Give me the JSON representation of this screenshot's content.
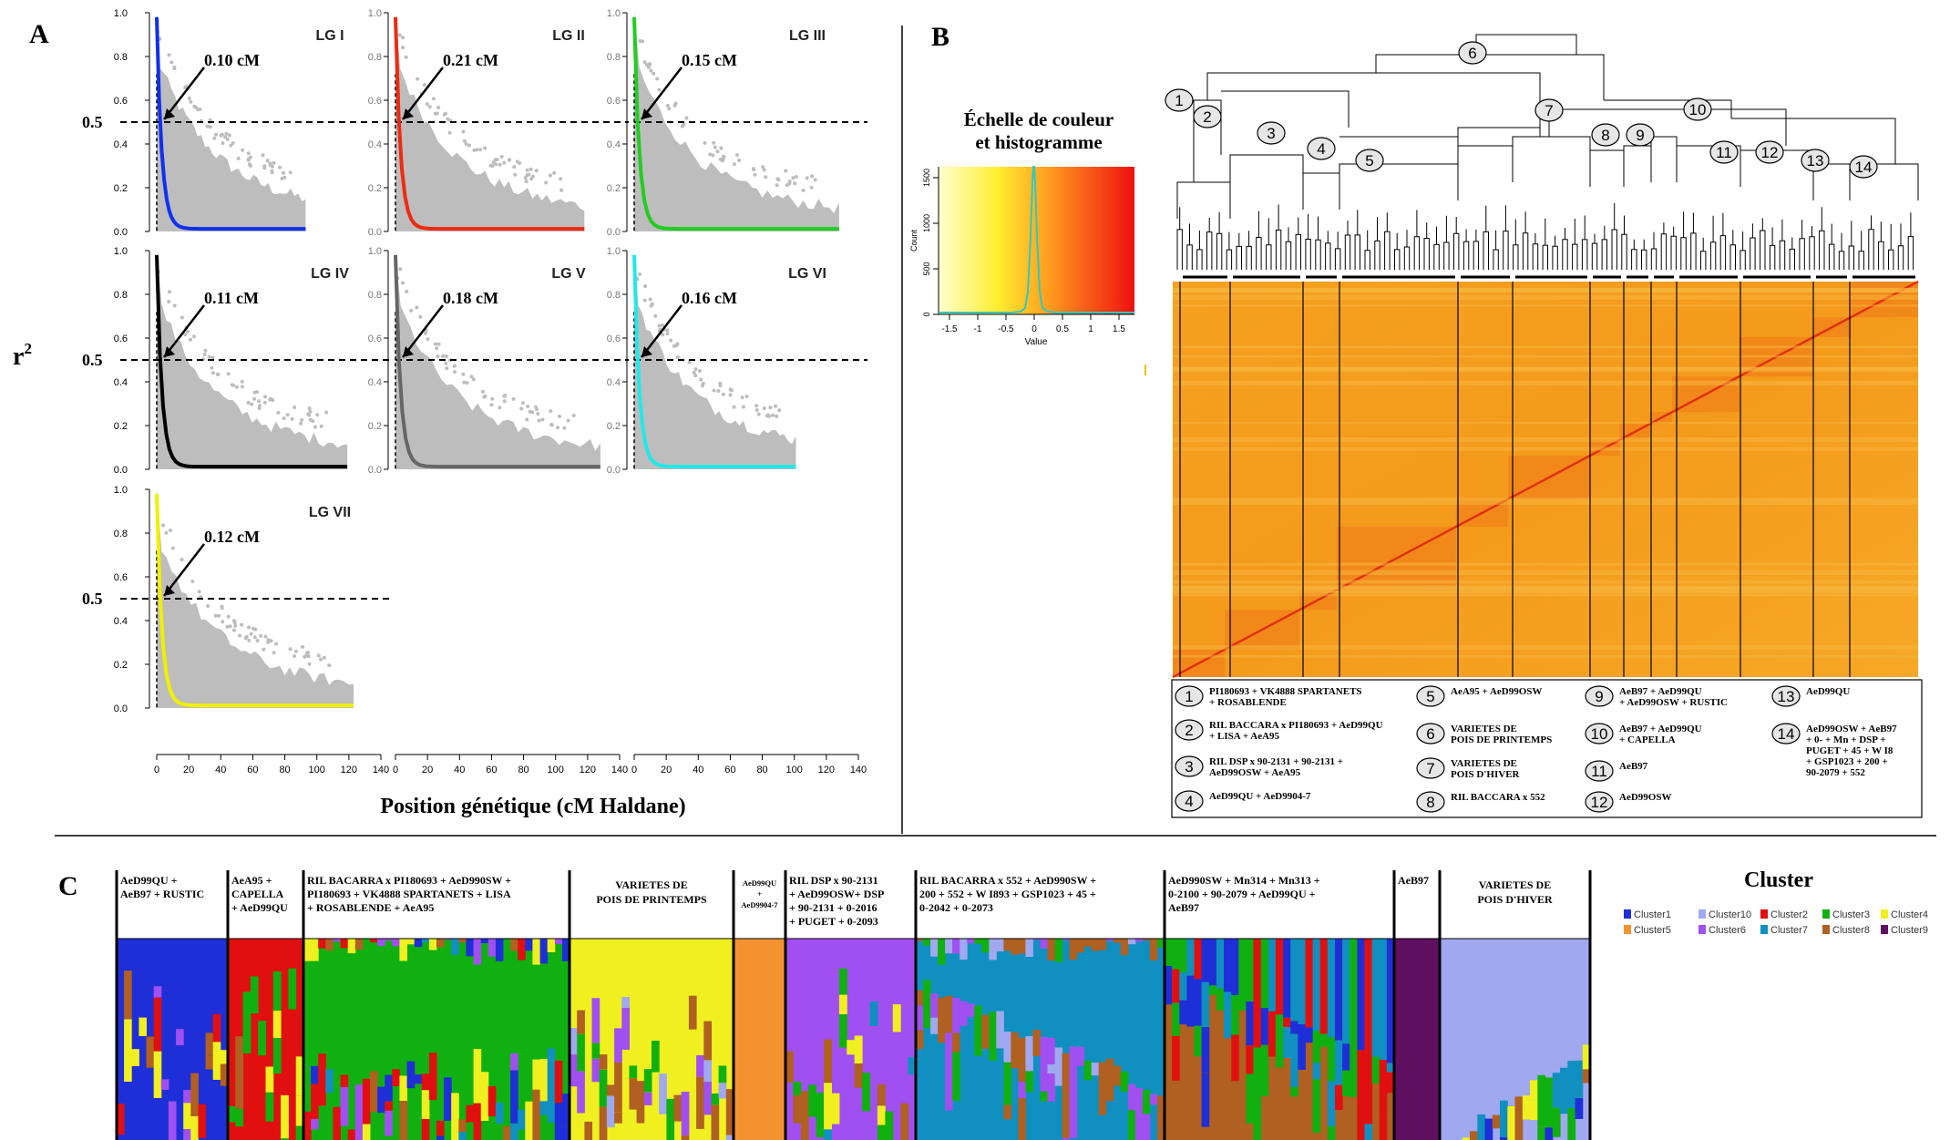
{
  "panel_a": {
    "label": "A",
    "y_label": "r",
    "y_label_sup": "2",
    "x_label": "Position génétique (cM Haldane)",
    "threshold_label": "0.5",
    "y_ticks": [
      "0.0",
      "0.2",
      "0.4",
      "0.6",
      "0.8",
      "1.0"
    ],
    "x_ticks": [
      "0",
      "20",
      "40",
      "60",
      "80",
      "100",
      "120",
      "140"
    ],
    "plots": [
      {
        "lg": "LG I",
        "decay": "0.10 cM",
        "color": "#1030ee",
        "extent": 93
      },
      {
        "lg": "LG II",
        "decay": "0.21 cM",
        "color": "#ee2a10",
        "extent": 118
      },
      {
        "lg": "LG III",
        "decay": "0.15 cM",
        "color": "#22cc22",
        "extent": 128
      },
      {
        "lg": "LG IV",
        "decay": "0.11 cM",
        "color": "#000000",
        "extent": 119
      },
      {
        "lg": "LG V",
        "decay": "0.18 cM",
        "color": "#666666",
        "extent": 128
      },
      {
        "lg": "LG VI",
        "decay": "0.16 cM",
        "color": "#22e8e8",
        "extent": 101
      },
      {
        "lg": "LG VII",
        "decay": "0.12 cM",
        "color": "#f0f000",
        "extent": 123
      }
    ]
  },
  "panel_b": {
    "label": "B",
    "scale_title_1": "Échelle de couleur",
    "scale_title_2": "et histogramme",
    "count_label": "Count",
    "value_label": "Value",
    "count_ticks": [
      "0",
      "500",
      "1000",
      "1500"
    ],
    "value_ticks": [
      "-1.5",
      "-1",
      "-0.5",
      "0",
      "0.5",
      "1",
      "1.5"
    ],
    "node_numbers": [
      "1",
      "2",
      "3",
      "4",
      "5",
      "6",
      "7",
      "8",
      "9",
      "10",
      "11",
      "12",
      "13",
      "14"
    ],
    "legend": [
      {
        "n": "1",
        "lines": [
          "PI180693 + VK4888 SPARTANETS",
          "+ ROSABLENDE"
        ]
      },
      {
        "n": "2",
        "lines": [
          "RIL BACCARA x PI180693 + AeD99QU",
          "+ LISA + AeA95"
        ]
      },
      {
        "n": "3",
        "lines": [
          "RIL DSP x 90-2131 + 90-2131 +",
          "AeD99OSW + AeA95"
        ]
      },
      {
        "n": "4",
        "lines": [
          "AeD99QU + AeD9904-7"
        ]
      },
      {
        "n": "5",
        "lines": [
          "AeA95 + AeD99OSW"
        ]
      },
      {
        "n": "6",
        "lines": [
          "VARIETES DE",
          "POIS DE PRINTEMPS"
        ]
      },
      {
        "n": "7",
        "lines": [
          "VARIETES DE",
          "POIS D'HIVER"
        ]
      },
      {
        "n": "8",
        "lines": [
          "RIL BACCARA x 552"
        ]
      },
      {
        "n": "9",
        "lines": [
          "AeB97 + AeD99QU",
          "+ AeD99OSW + RUSTIC"
        ]
      },
      {
        "n": "10",
        "lines": [
          "AeB97 + AeD99QU",
          "+ CAPELLA"
        ]
      },
      {
        "n": "11",
        "lines": [
          "AeB97"
        ]
      },
      {
        "n": "12",
        "lines": [
          "AeD99OSW"
        ]
      },
      {
        "n": "13",
        "lines": [
          "AeD99QU"
        ]
      },
      {
        "n": "14",
        "lines": [
          "AeD99OSW + AeB97",
          "+ 0- + Mn + DSP +",
          "PUGET + 45 + W I8",
          "+ GSP1023 + 200 +",
          "90-2079 + 552"
        ]
      }
    ]
  },
  "panel_c": {
    "label": "C",
    "cluster_title": "Cluster",
    "clusters": [
      {
        "name": "Cluster1",
        "color": "#1f2fd8"
      },
      {
        "name": "Cluster10",
        "color": "#a0a8f0"
      },
      {
        "name": "Cluster2",
        "color": "#e01010"
      },
      {
        "name": "Cluster3",
        "color": "#10b010"
      },
      {
        "name": "Cluster4",
        "color": "#f0f020"
      },
      {
        "name": "Cluster5",
        "color": "#f59230"
      },
      {
        "name": "Cluster6",
        "color": "#a050f0"
      },
      {
        "name": "Cluster7",
        "color": "#1090c0"
      },
      {
        "name": "Cluster8",
        "color": "#b06020"
      },
      {
        "name": "Cluster9",
        "color": "#601060"
      }
    ],
    "groups": [
      {
        "lines": [
          "AeD99QU +",
          "AeB97 + RUSTIC"
        ]
      },
      {
        "lines": [
          "AeA95 +",
          "CAPELLA",
          "+ AeD99QU"
        ]
      },
      {
        "lines": [
          "RIL BACARRA x PI180693 + AeD990SW +",
          "PI180693 + VK4888 SPARTANETS + LISA",
          "+ ROSABLENDE + AeA95"
        ]
      },
      {
        "lines": [
          "VARIETES DE",
          "POIS DE PRINTEMPS"
        ]
      },
      {
        "lines": [
          "AeD99QU",
          "+",
          "AeD9904-7"
        ]
      },
      {
        "lines": [
          "RIL DSP x 90-2131",
          "+ AeD99OSW+ DSP",
          "+ 90-2131 + 0-2016",
          "+ PUGET + 0-2093"
        ]
      },
      {
        "lines": [
          "RIL BACARRA x 552 + AeD990SW +",
          "200 + 552 + W I893 + GSP1023 + 45 +",
          "0-2042 + 0-2073"
        ]
      },
      {
        "lines": [
          "AeD990SW + Mn314 + Mn313 +",
          "0-2100 + 90-2079 + AeD99QU +",
          "AeB97"
        ]
      },
      {
        "lines": [
          "AeB97"
        ]
      },
      {
        "lines": [
          "VARIETES DE",
          "POIS D'HIVER"
        ]
      }
    ]
  }
}
